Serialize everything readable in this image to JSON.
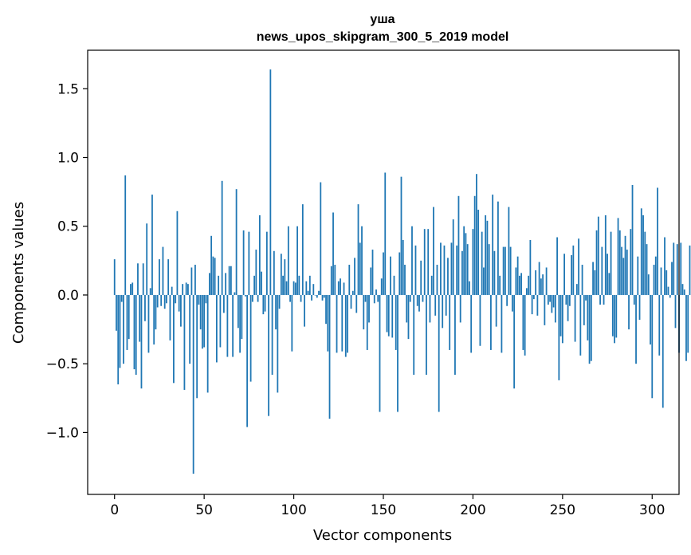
{
  "chart_data": {
    "type": "bar",
    "title": "уша",
    "subtitle": "news_upos_skipgram_300_5_2019 model",
    "xlabel": "Vector components",
    "ylabel": "Components values",
    "xlim": [
      -15,
      315
    ],
    "ylim": [
      -1.45,
      1.78
    ],
    "xticks": [
      0,
      50,
      100,
      150,
      200,
      250,
      300
    ],
    "xtick_labels": [
      "0",
      "50",
      "100",
      "150",
      "200",
      "250",
      "300"
    ],
    "yticks": [
      -1.0,
      -0.5,
      0.0,
      0.5,
      1.0,
      1.5
    ],
    "ytick_labels": [
      "−1.0",
      "−0.5",
      "0.0",
      "0.5",
      "1.0",
      "1.5"
    ],
    "bar_color": "#1f77b4",
    "grid": false,
    "legend": "none",
    "values": [
      0.26,
      -0.26,
      -0.65,
      -0.53,
      -0.05,
      -0.5,
      0.87,
      -0.4,
      -0.32,
      0.08,
      0.09,
      -0.54,
      -0.58,
      0.23,
      -0.34,
      -0.68,
      0.23,
      -0.19,
      0.52,
      -0.42,
      0.05,
      0.73,
      -0.36,
      -0.25,
      -0.09,
      0.26,
      -0.08,
      0.35,
      -0.1,
      -0.06,
      0.26,
      -0.33,
      0.06,
      -0.64,
      -0.06,
      0.61,
      -0.12,
      -0.23,
      0.08,
      -0.69,
      0.09,
      0.08,
      -0.5,
      0.2,
      -1.3,
      0.22,
      -0.75,
      -0.07,
      -0.25,
      -0.39,
      -0.38,
      -0.06,
      -0.71,
      0.16,
      0.43,
      0.28,
      0.27,
      -0.49,
      0.14,
      -0.38,
      0.83,
      -0.13,
      0.16,
      -0.45,
      0.21,
      0.21,
      -0.45,
      0.02,
      0.77,
      -0.24,
      -0.42,
      -0.32,
      0.47,
      -0.01,
      -0.96,
      0.46,
      -0.63,
      -0.05,
      0.14,
      0.33,
      -0.05,
      0.58,
      0.17,
      -0.14,
      -0.12,
      0.46,
      -0.88,
      1.64,
      -0.58,
      0.32,
      -0.25,
      -0.71,
      -0.1,
      0.3,
      0.14,
      0.26,
      0.1,
      0.5,
      -0.05,
      -0.41,
      0.1,
      0.09,
      0.5,
      0.14,
      -0.05,
      0.66,
      -0.23,
      0.1,
      0.03,
      0.14,
      -0.04,
      0.08,
      0.0,
      -0.02,
      0.03,
      0.82,
      -0.04,
      -0.02,
      -0.21,
      -0.41,
      -0.9,
      0.21,
      0.6,
      0.22,
      -0.42,
      0.1,
      0.12,
      -0.41,
      0.09,
      -0.45,
      -0.42,
      0.22,
      -0.1,
      0.03,
      0.27,
      -0.13,
      0.66,
      0.38,
      0.5,
      -0.25,
      -0.05,
      -0.4,
      -0.2,
      0.2,
      0.33,
      -0.06,
      0.04,
      -0.05,
      -0.85,
      0.12,
      0.31,
      0.89,
      -0.27,
      -0.3,
      0.28,
      -0.31,
      0.14,
      -0.4,
      -0.85,
      0.31,
      0.86,
      0.4,
      0.22,
      -0.2,
      -0.32,
      -0.05,
      0.5,
      -0.58,
      0.36,
      -0.08,
      -0.12,
      0.25,
      -0.05,
      0.48,
      -0.58,
      0.48,
      -0.2,
      0.14,
      0.64,
      -0.15,
      0.22,
      -0.85,
      0.38,
      -0.24,
      0.36,
      -0.15,
      0.27,
      -0.4,
      0.38,
      0.55,
      -0.58,
      0.36,
      0.72,
      -0.2,
      0.32,
      0.5,
      0.45,
      0.37,
      0.1,
      -0.42,
      0.48,
      0.72,
      0.88,
      0.62,
      -0.37,
      0.46,
      0.2,
      0.58,
      0.54,
      0.37,
      -0.4,
      0.73,
      0.32,
      -0.23,
      0.68,
      0.14,
      -0.42,
      0.35,
      0.35,
      -0.08,
      0.64,
      0.35,
      -0.12,
      -0.68,
      0.2,
      0.28,
      0.14,
      0.16,
      -0.4,
      -0.44,
      0.05,
      0.14,
      0.4,
      -0.14,
      -0.03,
      0.18,
      -0.15,
      0.24,
      0.12,
      0.15,
      -0.22,
      0.2,
      -0.07,
      -0.05,
      -0.13,
      -0.09,
      -0.2,
      0.42,
      -0.62,
      -0.3,
      -0.35,
      0.3,
      -0.07,
      -0.19,
      -0.08,
      0.29,
      0.36,
      -0.34,
      0.08,
      0.41,
      -0.44,
      0.22,
      -0.22,
      -0.04,
      -0.33,
      -0.5,
      -0.48,
      0.24,
      0.18,
      0.47,
      0.57,
      -0.07,
      0.35,
      -0.07,
      0.58,
      0.3,
      0.16,
      0.46,
      -0.3,
      -0.35,
      -0.31,
      0.56,
      0.47,
      0.35,
      0.27,
      0.43,
      0.33,
      -0.25,
      0.48,
      0.8,
      -0.07,
      -0.5,
      0.28,
      -0.18,
      0.63,
      0.58,
      0.46,
      0.37,
      0.15,
      -0.36,
      -0.75,
      0.22,
      0.28,
      0.78,
      -0.44,
      0.2,
      -0.82,
      0.42,
      0.18,
      0.06,
      -0.02,
      0.24,
      0.38,
      -0.24,
      0.37,
      -0.42,
      0.38,
      0.08,
      0.04,
      -0.48,
      -0.42,
      0.36
    ]
  }
}
